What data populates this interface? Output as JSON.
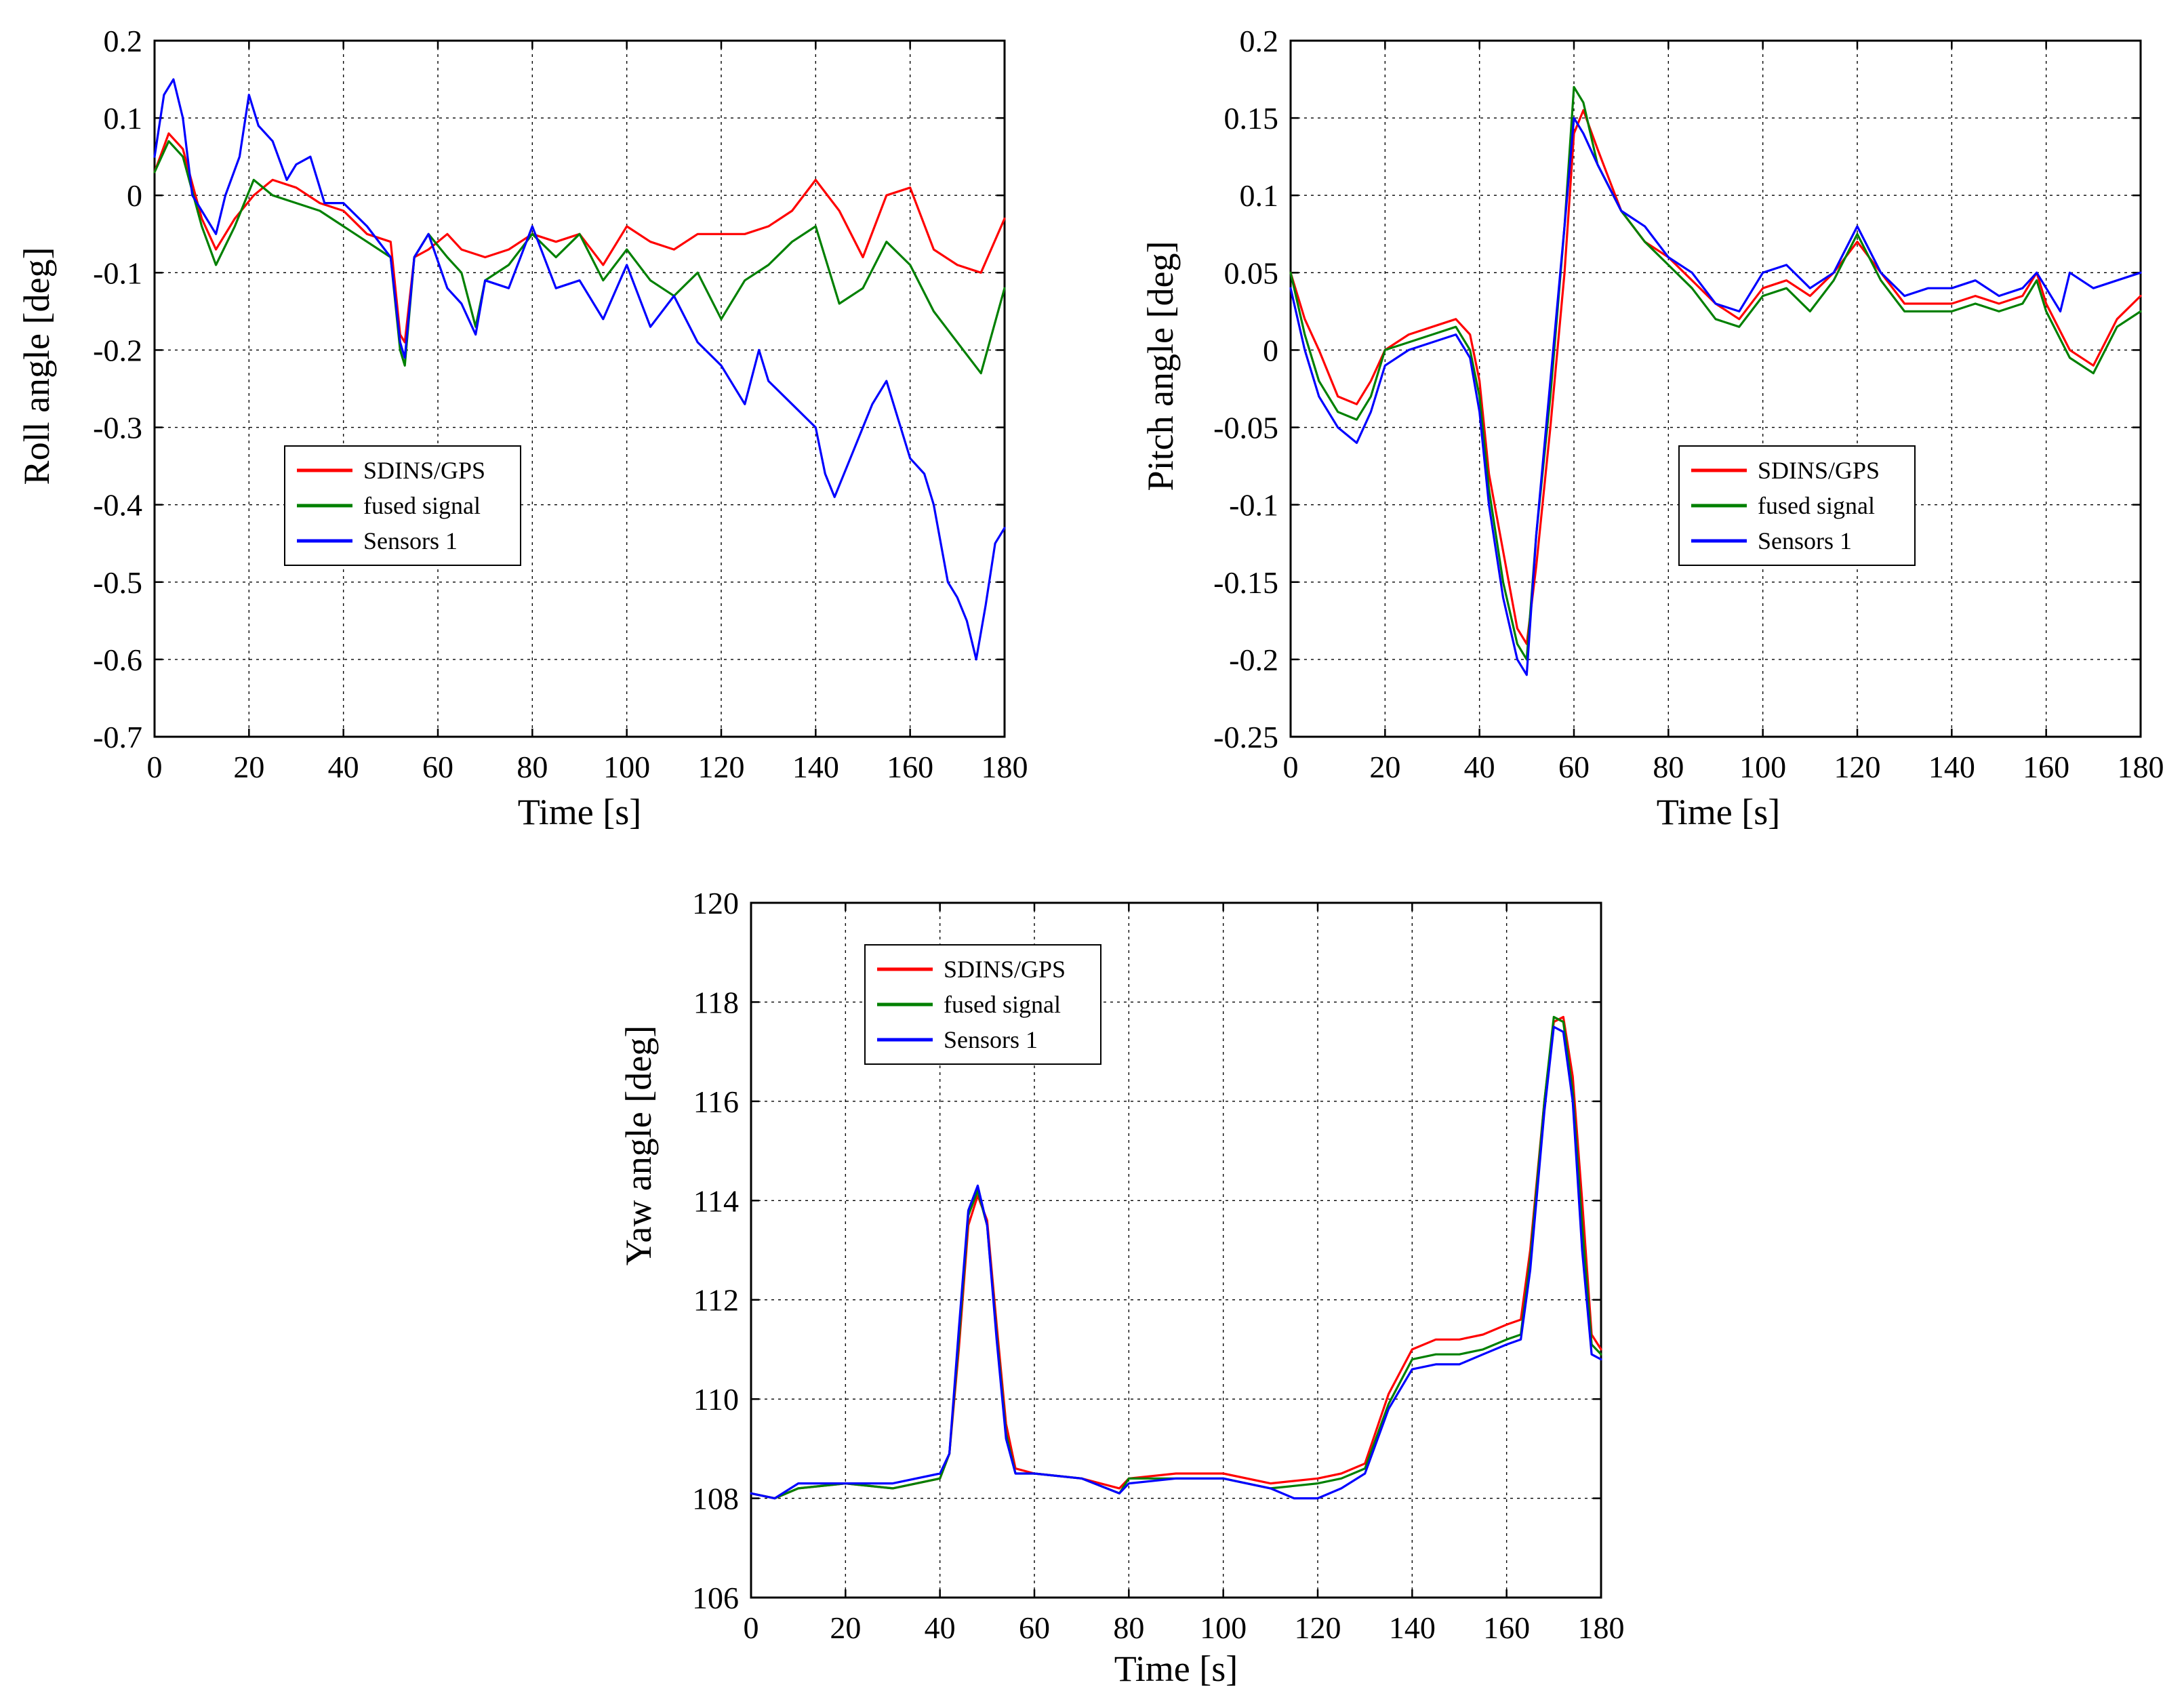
{
  "legend_colors": {
    "SDINS/GPS": "#ff0000",
    "fused signal": "#008000",
    "Sensors 1": "#0000ff"
  },
  "chart_data": [
    {
      "type": "line",
      "xlabel": "Time [s]",
      "ylabel": "Roll angle [deg]",
      "xlim": [
        0,
        180
      ],
      "ylim": [
        -0.7,
        0.2
      ],
      "xticks": [
        0,
        20,
        40,
        60,
        80,
        100,
        120,
        140,
        160,
        180
      ],
      "xtick_labels": [
        "0",
        "20",
        "40",
        "60",
        "80",
        "100",
        "120",
        "140",
        "160",
        "180"
      ],
      "yticks": [
        0.2,
        0.1,
        0,
        -0.1,
        -0.2,
        -0.3,
        -0.4,
        -0.5,
        -0.6,
        -0.7
      ],
      "ytick_labels": [
        "0.2",
        "0.1",
        "0",
        "-0.1",
        "-0.2",
        "-0.3",
        "-0.4",
        "-0.5",
        "-0.6",
        "-0.7"
      ],
      "grid": true,
      "legend_position": "center-left",
      "series": [
        {
          "name": "SDINS/GPS",
          "color": "#ff0000",
          "x": [
            0,
            3,
            6,
            10,
            13,
            17,
            21,
            25,
            30,
            35,
            40,
            45,
            50,
            52,
            53,
            55,
            58,
            62,
            65,
            70,
            75,
            80,
            85,
            90,
            95,
            100,
            105,
            110,
            115,
            120,
            125,
            130,
            135,
            140,
            145,
            150,
            155,
            160,
            165,
            170,
            175,
            180
          ],
          "y": [
            0.03,
            0.08,
            0.06,
            -0.03,
            -0.07,
            -0.03,
            0.0,
            0.02,
            0.01,
            -0.01,
            -0.02,
            -0.05,
            -0.06,
            -0.18,
            -0.19,
            -0.08,
            -0.07,
            -0.05,
            -0.07,
            -0.08,
            -0.07,
            -0.05,
            -0.06,
            -0.05,
            -0.09,
            -0.04,
            -0.06,
            -0.07,
            -0.05,
            -0.05,
            -0.05,
            -0.04,
            -0.02,
            0.02,
            -0.02,
            -0.08,
            0.0,
            0.01,
            -0.07,
            -0.09,
            -0.1,
            -0.03
          ]
        },
        {
          "name": "fused signal",
          "color": "#008000",
          "x": [
            0,
            3,
            6,
            10,
            13,
            17,
            21,
            25,
            30,
            35,
            40,
            45,
            50,
            52,
            53,
            55,
            58,
            62,
            65,
            68,
            70,
            75,
            80,
            85,
            90,
            95,
            100,
            105,
            110,
            115,
            120,
            125,
            130,
            135,
            140,
            145,
            150,
            155,
            160,
            165,
            170,
            175,
            180
          ],
          "y": [
            0.03,
            0.07,
            0.05,
            -0.04,
            -0.09,
            -0.04,
            0.02,
            0.0,
            -0.01,
            -0.02,
            -0.04,
            -0.06,
            -0.08,
            -0.2,
            -0.22,
            -0.08,
            -0.05,
            -0.08,
            -0.1,
            -0.17,
            -0.11,
            -0.09,
            -0.05,
            -0.08,
            -0.05,
            -0.11,
            -0.07,
            -0.11,
            -0.13,
            -0.1,
            -0.16,
            -0.11,
            -0.09,
            -0.06,
            -0.04,
            -0.14,
            -0.12,
            -0.06,
            -0.09,
            -0.15,
            -0.19,
            -0.23,
            -0.12
          ]
        },
        {
          "name": "Sensors 1",
          "color": "#0000ff",
          "x": [
            0,
            2,
            4,
            6,
            8,
            10,
            13,
            15,
            18,
            20,
            22,
            25,
            28,
            30,
            33,
            36,
            40,
            45,
            50,
            52,
            53,
            55,
            58,
            62,
            65,
            68,
            70,
            75,
            80,
            85,
            90,
            95,
            100,
            105,
            110,
            115,
            120,
            125,
            128,
            130,
            135,
            140,
            142,
            144,
            148,
            152,
            155,
            160,
            163,
            165,
            168,
            170,
            172,
            174,
            176,
            178,
            180
          ],
          "y": [
            0.05,
            0.13,
            0.15,
            0.1,
            0.0,
            -0.02,
            -0.05,
            0.0,
            0.05,
            0.13,
            0.09,
            0.07,
            0.02,
            0.04,
            0.05,
            -0.01,
            -0.01,
            -0.04,
            -0.08,
            -0.19,
            -0.21,
            -0.08,
            -0.05,
            -0.12,
            -0.14,
            -0.18,
            -0.11,
            -0.12,
            -0.04,
            -0.12,
            -0.11,
            -0.16,
            -0.09,
            -0.17,
            -0.13,
            -0.19,
            -0.22,
            -0.27,
            -0.2,
            -0.24,
            -0.27,
            -0.3,
            -0.36,
            -0.39,
            -0.33,
            -0.27,
            -0.24,
            -0.34,
            -0.36,
            -0.4,
            -0.5,
            -0.52,
            -0.55,
            -0.6,
            -0.53,
            -0.45,
            -0.43
          ]
        }
      ]
    },
    {
      "type": "line",
      "xlabel": "Time [s]",
      "ylabel": "Pitch angle [deg]",
      "xlim": [
        0,
        180
      ],
      "ylim": [
        -0.25,
        0.2
      ],
      "xticks": [
        0,
        20,
        40,
        60,
        80,
        100,
        120,
        140,
        160,
        180
      ],
      "xtick_labels": [
        "0",
        "20",
        "40",
        "60",
        "80",
        "100",
        "120",
        "140",
        "160",
        "180"
      ],
      "yticks": [
        0.2,
        0.15,
        0.1,
        0.05,
        0,
        -0.05,
        -0.1,
        -0.15,
        -0.2,
        -0.25
      ],
      "ytick_labels": [
        "0.2",
        "0.15",
        "0.1",
        "0.05",
        "0",
        "-0.05",
        "-0.1",
        "-0.15",
        "-0.2",
        "-0.25"
      ],
      "grid": true,
      "legend_position": "center-right",
      "series": [
        {
          "name": "SDINS/GPS",
          "color": "#ff0000",
          "x": [
            0,
            3,
            6,
            10,
            14,
            17,
            20,
            25,
            30,
            35,
            38,
            40,
            42,
            45,
            48,
            50,
            52,
            55,
            58,
            60,
            62,
            65,
            70,
            75,
            80,
            85,
            90,
            95,
            100,
            105,
            110,
            115,
            120,
            125,
            130,
            135,
            140,
            145,
            150,
            155,
            158,
            160,
            165,
            170,
            175,
            180
          ],
          "y": [
            0.05,
            0.02,
            0.0,
            -0.03,
            -0.035,
            -0.02,
            0.0,
            0.01,
            0.015,
            0.02,
            0.01,
            -0.02,
            -0.08,
            -0.13,
            -0.18,
            -0.19,
            -0.14,
            -0.05,
            0.05,
            0.14,
            0.155,
            0.13,
            0.09,
            0.07,
            0.06,
            0.045,
            0.03,
            0.02,
            0.04,
            0.045,
            0.035,
            0.05,
            0.07,
            0.05,
            0.03,
            0.03,
            0.03,
            0.035,
            0.03,
            0.035,
            0.05,
            0.03,
            0.0,
            -0.01,
            0.02,
            0.035
          ]
        },
        {
          "name": "fused signal",
          "color": "#008000",
          "x": [
            0,
            3,
            6,
            10,
            14,
            17,
            20,
            25,
            30,
            35,
            38,
            40,
            42,
            45,
            48,
            50,
            52,
            55,
            58,
            60,
            62,
            65,
            70,
            75,
            80,
            85,
            90,
            95,
            100,
            105,
            110,
            115,
            120,
            125,
            130,
            135,
            140,
            145,
            150,
            155,
            158,
            160,
            165,
            170,
            175,
            180
          ],
          "y": [
            0.05,
            0.01,
            -0.02,
            -0.04,
            -0.045,
            -0.03,
            0.0,
            0.005,
            0.01,
            0.015,
            0.0,
            -0.03,
            -0.09,
            -0.15,
            -0.19,
            -0.2,
            -0.12,
            -0.03,
            0.08,
            0.17,
            0.16,
            0.12,
            0.09,
            0.07,
            0.055,
            0.04,
            0.02,
            0.015,
            0.035,
            0.04,
            0.025,
            0.045,
            0.075,
            0.045,
            0.025,
            0.025,
            0.025,
            0.03,
            0.025,
            0.03,
            0.045,
            0.025,
            -0.005,
            -0.015,
            0.015,
            0.025
          ]
        },
        {
          "name": "Sensors 1",
          "color": "#0000ff",
          "x": [
            0,
            3,
            6,
            10,
            14,
            17,
            20,
            25,
            30,
            35,
            38,
            40,
            42,
            45,
            48,
            50,
            52,
            55,
            58,
            60,
            62,
            65,
            70,
            75,
            80,
            85,
            90,
            95,
            100,
            105,
            110,
            115,
            120,
            125,
            130,
            135,
            140,
            145,
            150,
            155,
            158,
            160,
            163,
            165,
            170,
            175,
            180
          ],
          "y": [
            0.04,
            0.0,
            -0.03,
            -0.05,
            -0.06,
            -0.04,
            -0.01,
            0.0,
            0.005,
            0.01,
            -0.005,
            -0.04,
            -0.1,
            -0.16,
            -0.2,
            -0.21,
            -0.12,
            -0.02,
            0.08,
            0.15,
            0.14,
            0.12,
            0.09,
            0.08,
            0.06,
            0.05,
            0.03,
            0.025,
            0.05,
            0.055,
            0.04,
            0.05,
            0.08,
            0.05,
            0.035,
            0.04,
            0.04,
            0.045,
            0.035,
            0.04,
            0.05,
            0.04,
            0.025,
            0.05,
            0.04,
            0.045,
            0.05
          ]
        }
      ]
    },
    {
      "type": "line",
      "xlabel": "Time [s]",
      "ylabel": "Yaw angle [deg]",
      "xlim": [
        0,
        180
      ],
      "ylim": [
        106,
        120
      ],
      "xticks": [
        0,
        20,
        40,
        60,
        80,
        100,
        120,
        140,
        160,
        180
      ],
      "xtick_labels": [
        "0",
        "20",
        "40",
        "60",
        "80",
        "100",
        "120",
        "140",
        "160",
        "180"
      ],
      "yticks": [
        120,
        118,
        116,
        114,
        112,
        110,
        108,
        106
      ],
      "ytick_labels": [
        "120",
        "118",
        "116",
        "114",
        "112",
        "110",
        "108",
        "106"
      ],
      "grid": true,
      "legend_position": "top-left",
      "series": [
        {
          "name": "SDINS/GPS",
          "color": "#ff0000",
          "x": [
            0,
            5,
            10,
            20,
            30,
            40,
            42,
            44,
            46,
            48,
            50,
            52,
            54,
            56,
            60,
            70,
            78,
            80,
            90,
            100,
            110,
            120,
            125,
            130,
            135,
            140,
            145,
            150,
            155,
            160,
            163,
            165,
            168,
            170,
            172,
            174,
            176,
            178,
            180
          ],
          "y": [
            108.1,
            108.0,
            108.2,
            108.3,
            108.2,
            108.4,
            108.9,
            111.0,
            113.5,
            114.1,
            113.6,
            111.5,
            109.5,
            108.6,
            108.5,
            108.4,
            108.2,
            108.4,
            108.5,
            108.5,
            108.3,
            108.4,
            108.5,
            108.7,
            110.1,
            111.0,
            111.2,
            111.2,
            111.3,
            111.5,
            111.6,
            113.0,
            116.0,
            117.6,
            117.7,
            116.5,
            114.0,
            111.3,
            111.0
          ]
        },
        {
          "name": "fused signal",
          "color": "#008000",
          "x": [
            0,
            5,
            10,
            20,
            30,
            40,
            42,
            44,
            46,
            48,
            50,
            52,
            54,
            56,
            60,
            70,
            78,
            80,
            90,
            100,
            110,
            120,
            125,
            130,
            135,
            140,
            145,
            150,
            155,
            160,
            163,
            165,
            168,
            170,
            172,
            174,
            176,
            178,
            180
          ],
          "y": [
            108.1,
            108.0,
            108.2,
            108.3,
            108.2,
            108.4,
            108.9,
            111.2,
            113.7,
            114.2,
            113.5,
            111.3,
            109.3,
            108.5,
            108.5,
            108.4,
            108.1,
            108.4,
            108.4,
            108.4,
            108.2,
            108.3,
            108.4,
            108.6,
            109.9,
            110.8,
            110.9,
            110.9,
            111.0,
            111.2,
            111.3,
            112.8,
            116.0,
            117.7,
            117.6,
            116.2,
            113.5,
            111.1,
            110.9
          ]
        },
        {
          "name": "Sensors 1",
          "color": "#0000ff",
          "x": [
            0,
            5,
            10,
            20,
            30,
            40,
            42,
            44,
            46,
            48,
            50,
            52,
            54,
            56,
            60,
            70,
            78,
            80,
            90,
            100,
            110,
            115,
            120,
            125,
            130,
            135,
            140,
            145,
            150,
            155,
            160,
            163,
            165,
            168,
            170,
            172,
            174,
            176,
            178,
            180
          ],
          "y": [
            108.1,
            108.0,
            108.3,
            108.3,
            108.3,
            108.5,
            108.9,
            111.4,
            113.8,
            114.3,
            113.5,
            111.2,
            109.2,
            108.5,
            108.5,
            108.4,
            108.1,
            108.3,
            108.4,
            108.4,
            108.2,
            108.0,
            108.0,
            108.2,
            108.5,
            109.8,
            110.6,
            110.7,
            110.7,
            110.9,
            111.1,
            111.2,
            112.6,
            115.8,
            117.5,
            117.4,
            116.0,
            113.0,
            110.9,
            110.8
          ]
        }
      ]
    }
  ]
}
